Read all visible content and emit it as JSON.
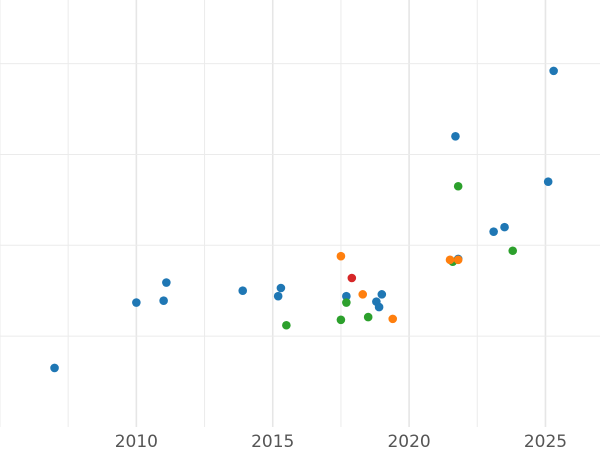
{
  "chart_data": {
    "type": "scatter",
    "title": "",
    "xlabel": "",
    "ylabel": "",
    "xlim": [
      2005,
      2027
    ],
    "ylim": [
      0,
      4.7
    ],
    "x_ticks": [
      2010,
      2015,
      2020,
      2025
    ],
    "x_tick_labels": [
      "2010",
      "2015",
      "2020",
      "2025"
    ],
    "x_minor_grid": [
      2005,
      2007.5,
      2012.5,
      2017.5,
      2022.5,
      2027.5
    ],
    "y_grid": [
      1,
      2,
      3,
      4
    ],
    "grid": true,
    "legend": "none",
    "series": [
      {
        "color": "#1f77b4",
        "points": [
          {
            "x": 2007.0,
            "y": 0.65
          },
          {
            "x": 2010.0,
            "y": 1.37
          },
          {
            "x": 2011.0,
            "y": 1.39
          },
          {
            "x": 2011.1,
            "y": 1.59
          },
          {
            "x": 2013.9,
            "y": 1.5
          },
          {
            "x": 2015.2,
            "y": 1.44
          },
          {
            "x": 2015.3,
            "y": 1.53
          },
          {
            "x": 2017.7,
            "y": 1.44
          },
          {
            "x": 2018.8,
            "y": 1.38
          },
          {
            "x": 2018.9,
            "y": 1.32
          },
          {
            "x": 2019.0,
            "y": 1.46
          },
          {
            "x": 2021.8,
            "y": 1.85
          },
          {
            "x": 2021.7,
            "y": 3.2
          },
          {
            "x": 2023.1,
            "y": 2.15
          },
          {
            "x": 2023.5,
            "y": 2.2
          },
          {
            "x": 2025.1,
            "y": 2.7
          },
          {
            "x": 2025.3,
            "y": 3.92
          }
        ]
      },
      {
        "color": "#2ca02c",
        "points": [
          {
            "x": 2015.5,
            "y": 1.12
          },
          {
            "x": 2017.5,
            "y": 1.18
          },
          {
            "x": 2017.7,
            "y": 1.37
          },
          {
            "x": 2018.5,
            "y": 1.21
          },
          {
            "x": 2021.6,
            "y": 1.82
          },
          {
            "x": 2021.8,
            "y": 2.65
          },
          {
            "x": 2023.8,
            "y": 1.94
          }
        ]
      },
      {
        "color": "#ff7f0e",
        "points": [
          {
            "x": 2017.5,
            "y": 1.88
          },
          {
            "x": 2018.3,
            "y": 1.46
          },
          {
            "x": 2019.4,
            "y": 1.19
          },
          {
            "x": 2021.5,
            "y": 1.84
          },
          {
            "x": 2021.8,
            "y": 1.84
          }
        ]
      },
      {
        "color": "#d62728",
        "points": [
          {
            "x": 2017.9,
            "y": 1.64
          }
        ]
      }
    ]
  }
}
